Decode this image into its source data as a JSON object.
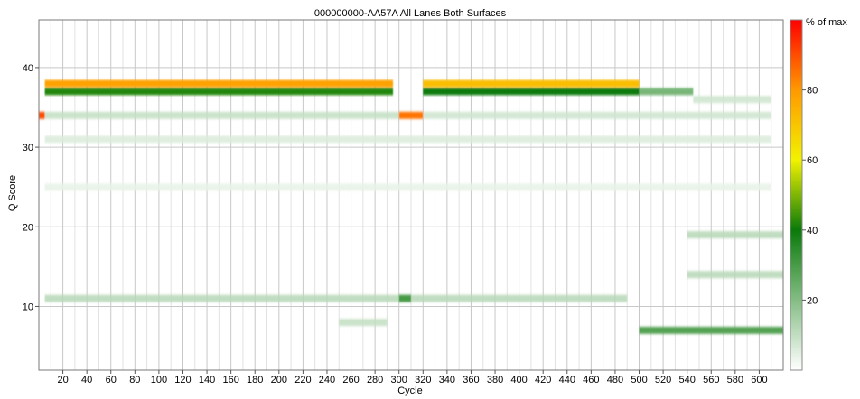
{
  "chart_data": {
    "type": "heatmap",
    "title": "000000000-AA57A All Lanes Both Surfaces",
    "xlabel": "Cycle",
    "ylabel": "Q Score",
    "xlim": [
      0,
      620
    ],
    "ylim": [
      2,
      46
    ],
    "x_ticks": [
      "20",
      "40",
      "60",
      "80",
      "100",
      "120",
      "140",
      "160",
      "180",
      "200",
      "220",
      "240",
      "260",
      "280",
      "300",
      "320",
      "340",
      "360",
      "380",
      "400",
      "420",
      "440",
      "460",
      "480",
      "500",
      "520",
      "540",
      "560",
      "580",
      "600"
    ],
    "y_ticks": [
      "10",
      "20",
      "30",
      "40"
    ],
    "grid": true,
    "colorbar": {
      "label": "% of max",
      "ticks": [
        "20",
        "40",
        "60",
        "80"
      ],
      "range": [
        0,
        100
      ],
      "stops": [
        {
          "v": 0,
          "color": "#ffffff"
        },
        {
          "v": 40,
          "color": "#0a7a0a"
        },
        {
          "v": 60,
          "color": "#f2f200"
        },
        {
          "v": 80,
          "color": "#ff9900"
        },
        {
          "v": 100,
          "color": "#ff0000"
        }
      ]
    },
    "bands": [
      {
        "q": 38,
        "x_range": [
          5,
          295
        ],
        "intensity": 78
      },
      {
        "q": 37,
        "x_range": [
          5,
          295
        ],
        "intensity": 42
      },
      {
        "q": 38,
        "x_range": [
          320,
          500
        ],
        "intensity": 72
      },
      {
        "q": 37,
        "x_range": [
          320,
          500
        ],
        "intensity": 40
      },
      {
        "q": 37,
        "x_range": [
          500,
          545
        ],
        "intensity": 22
      },
      {
        "q": 36,
        "x_range": [
          545,
          610
        ],
        "intensity": 8
      },
      {
        "q": 34,
        "x_range": [
          0,
          5
        ],
        "intensity": 90
      },
      {
        "q": 34,
        "x_range": [
          300,
          320
        ],
        "intensity": 85
      },
      {
        "q": 34,
        "x_range": [
          5,
          300
        ],
        "intensity": 10
      },
      {
        "q": 34,
        "x_range": [
          320,
          610
        ],
        "intensity": 8
      },
      {
        "q": 31,
        "x_range": [
          5,
          610
        ],
        "intensity": 6
      },
      {
        "q": 25,
        "x_range": [
          5,
          610
        ],
        "intensity": 4
      },
      {
        "q": 19,
        "x_range": [
          540,
          620
        ],
        "intensity": 12
      },
      {
        "q": 14,
        "x_range": [
          540,
          620
        ],
        "intensity": 12
      },
      {
        "q": 11,
        "x_range": [
          5,
          490
        ],
        "intensity": 12
      },
      {
        "q": 11,
        "x_range": [
          300,
          310
        ],
        "intensity": 30
      },
      {
        "q": 8,
        "x_range": [
          250,
          290
        ],
        "intensity": 10
      },
      {
        "q": 7,
        "x_range": [
          500,
          620
        ],
        "intensity": 28
      }
    ]
  }
}
